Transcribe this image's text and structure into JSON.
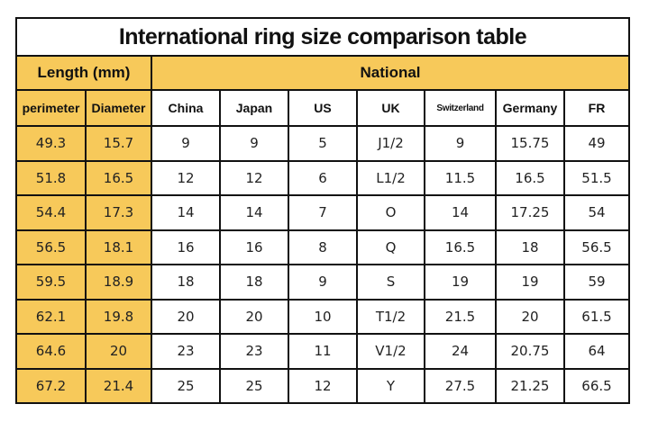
{
  "title": "International ring size comparison table",
  "group_headers": {
    "length": "Length (mm)",
    "national": "National"
  },
  "columns": [
    "perimeter",
    "Diameter",
    "China",
    "Japan",
    "US",
    "UK",
    "Switzerland",
    "Germany",
    "FR"
  ],
  "rows": [
    [
      "49.3",
      "15.7",
      "9",
      "9",
      "5",
      "J1/2",
      "9",
      "15.75",
      "49"
    ],
    [
      "51.8",
      "16.5",
      "12",
      "12",
      "6",
      "L1/2",
      "11.5",
      "16.5",
      "51.5"
    ],
    [
      "54.4",
      "17.3",
      "14",
      "14",
      "7",
      "O",
      "14",
      "17.25",
      "54"
    ],
    [
      "56.5",
      "18.1",
      "16",
      "16",
      "8",
      "Q",
      "16.5",
      "18",
      "56.5"
    ],
    [
      "59.5",
      "18.9",
      "18",
      "18",
      "9",
      "S",
      "19",
      "19",
      "59"
    ],
    [
      "62.1",
      "19.8",
      "20",
      "20",
      "10",
      "T1/2",
      "21.5",
      "20",
      "61.5"
    ],
    [
      "64.6",
      "20",
      "23",
      "23",
      "11",
      "V1/2",
      "24",
      "20.75",
      "64"
    ],
    [
      "67.2",
      "21.4",
      "25",
      "25",
      "12",
      "Y",
      "27.5",
      "21.25",
      "66.5"
    ]
  ],
  "colors": {
    "accent": "#f7c95a",
    "border": "#111111",
    "background": "#ffffff"
  }
}
